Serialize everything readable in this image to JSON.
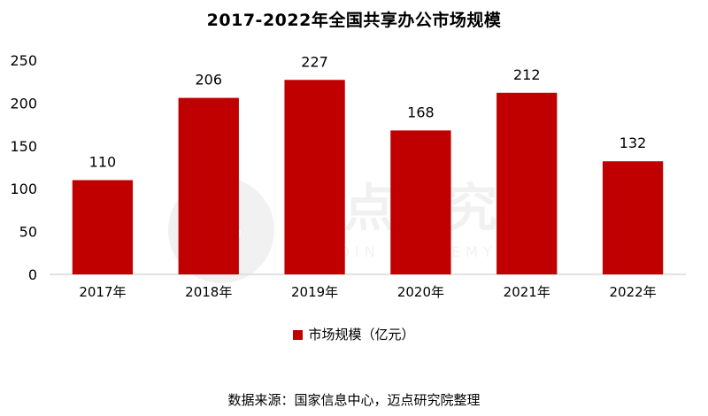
{
  "colors": {
    "bar": "#c00000",
    "axis": "#d9d9d9",
    "text": "#000000",
    "watermark": "#808080"
  },
  "watermark": {
    "cn": "迈点研究院",
    "en": "MEADIN ACADEMY"
  },
  "chart_data": {
    "type": "bar",
    "title": "2017-2022年全国共享办公市场规模",
    "categories": [
      "2017年",
      "2018年",
      "2019年",
      "2020年",
      "2021年",
      "2022年"
    ],
    "series": [
      {
        "name": "市场规模（亿元）",
        "values": [
          110,
          206,
          227,
          168,
          212,
          132
        ]
      }
    ],
    "ylim": [
      0,
      250
    ],
    "yticks": [
      0,
      50,
      100,
      150,
      200,
      250
    ],
    "data_labels": true,
    "grid": false,
    "legend_position": "bottom"
  },
  "source": "数据来源：国家信息中心，迈点研究院整理"
}
